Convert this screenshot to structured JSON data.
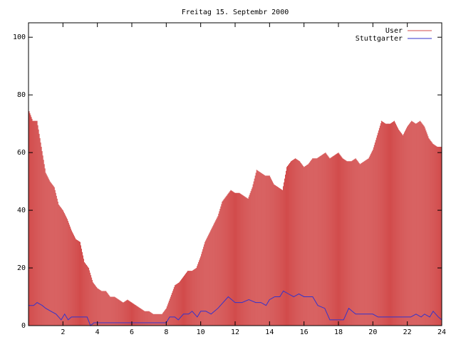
{
  "chart_data": {
    "type": "bar",
    "title": "Freitag 15. Septembr 2000",
    "xlabel": "",
    "ylabel": "",
    "xlim": [
      0,
      24
    ],
    "ylim": [
      0,
      105
    ],
    "x_ticks": [
      2,
      4,
      6,
      8,
      10,
      12,
      14,
      16,
      18,
      20,
      22,
      24
    ],
    "y_ticks": [
      0,
      20,
      40,
      60,
      80,
      100
    ],
    "legend_position": "top-right",
    "grid": false,
    "series": [
      {
        "name": "User",
        "style": "impulses",
        "color": "#d24b4b",
        "points": [
          [
            0,
            75
          ],
          [
            0.25,
            71
          ],
          [
            0.5,
            71
          ],
          [
            0.75,
            62
          ],
          [
            1,
            53
          ],
          [
            1.25,
            50
          ],
          [
            1.5,
            48
          ],
          [
            1.75,
            42
          ],
          [
            2,
            40
          ],
          [
            2.25,
            37
          ],
          [
            2.5,
            33
          ],
          [
            2.75,
            30
          ],
          [
            3,
            29
          ],
          [
            3.25,
            22
          ],
          [
            3.5,
            20
          ],
          [
            3.75,
            15
          ],
          [
            4,
            13
          ],
          [
            4.25,
            12
          ],
          [
            4.5,
            12
          ],
          [
            4.75,
            10
          ],
          [
            5,
            10
          ],
          [
            5.25,
            9
          ],
          [
            5.5,
            8
          ],
          [
            5.75,
            9
          ],
          [
            6,
            8
          ],
          [
            6.25,
            7
          ],
          [
            6.5,
            6
          ],
          [
            6.75,
            5
          ],
          [
            7,
            5
          ],
          [
            7.25,
            4
          ],
          [
            7.5,
            4
          ],
          [
            7.75,
            4
          ],
          [
            8,
            6
          ],
          [
            8.25,
            10
          ],
          [
            8.5,
            14
          ],
          [
            8.75,
            15
          ],
          [
            9,
            17
          ],
          [
            9.25,
            19
          ],
          [
            9.5,
            19
          ],
          [
            9.75,
            20
          ],
          [
            10,
            24
          ],
          [
            10.25,
            29
          ],
          [
            10.5,
            32
          ],
          [
            10.75,
            35
          ],
          [
            11,
            38
          ],
          [
            11.25,
            43
          ],
          [
            11.5,
            45
          ],
          [
            11.75,
            47
          ],
          [
            12,
            46
          ],
          [
            12.25,
            46
          ],
          [
            12.5,
            45
          ],
          [
            12.75,
            44
          ],
          [
            13,
            48
          ],
          [
            13.25,
            54
          ],
          [
            13.5,
            53
          ],
          [
            13.75,
            52
          ],
          [
            14,
            52
          ],
          [
            14.25,
            49
          ],
          [
            14.5,
            48
          ],
          [
            14.75,
            47
          ],
          [
            15,
            55
          ],
          [
            15.25,
            57
          ],
          [
            15.5,
            58
          ],
          [
            15.75,
            57
          ],
          [
            16,
            55
          ],
          [
            16.25,
            56
          ],
          [
            16.5,
            58
          ],
          [
            16.75,
            58
          ],
          [
            17,
            59
          ],
          [
            17.25,
            60
          ],
          [
            17.5,
            58
          ],
          [
            17.75,
            59
          ],
          [
            18,
            60
          ],
          [
            18.25,
            58
          ],
          [
            18.5,
            57
          ],
          [
            18.75,
            57
          ],
          [
            19,
            58
          ],
          [
            19.25,
            56
          ],
          [
            19.5,
            57
          ],
          [
            19.75,
            58
          ],
          [
            20,
            61
          ],
          [
            20.25,
            66
          ],
          [
            20.5,
            71
          ],
          [
            20.75,
            70
          ],
          [
            21,
            70
          ],
          [
            21.25,
            71
          ],
          [
            21.5,
            68
          ],
          [
            21.75,
            66
          ],
          [
            22,
            69
          ],
          [
            22.25,
            71
          ],
          [
            22.5,
            70
          ],
          [
            22.75,
            71
          ],
          [
            23,
            69
          ],
          [
            23.25,
            65
          ],
          [
            23.5,
            63
          ],
          [
            23.75,
            62
          ],
          [
            24,
            62
          ]
        ]
      },
      {
        "name": "Stuttgarter",
        "style": "line",
        "color": "#3333cc",
        "points": [
          [
            0,
            7
          ],
          [
            0.3,
            7
          ],
          [
            0.5,
            8
          ],
          [
            0.8,
            7
          ],
          [
            1,
            6
          ],
          [
            1.3,
            5
          ],
          [
            1.6,
            4
          ],
          [
            1.9,
            2
          ],
          [
            2.1,
            4
          ],
          [
            2.3,
            2
          ],
          [
            2.5,
            3
          ],
          [
            3,
            3
          ],
          [
            3.4,
            3
          ],
          [
            3.6,
            0
          ],
          [
            3.8,
            1
          ],
          [
            4.2,
            1
          ],
          [
            5,
            1
          ],
          [
            5.5,
            1
          ],
          [
            6,
            1
          ],
          [
            7,
            1
          ],
          [
            7.5,
            1
          ],
          [
            8,
            1
          ],
          [
            8.2,
            3
          ],
          [
            8.5,
            3
          ],
          [
            8.7,
            2
          ],
          [
            9,
            4
          ],
          [
            9.3,
            4
          ],
          [
            9.5,
            5
          ],
          [
            9.8,
            3
          ],
          [
            10,
            5
          ],
          [
            10.3,
            5
          ],
          [
            10.6,
            4
          ],
          [
            11,
            6
          ],
          [
            11.3,
            8
          ],
          [
            11.6,
            10
          ],
          [
            11.8,
            9
          ],
          [
            12,
            8
          ],
          [
            12.4,
            8
          ],
          [
            12.8,
            9
          ],
          [
            13.2,
            8
          ],
          [
            13.5,
            8
          ],
          [
            13.8,
            7
          ],
          [
            14,
            9
          ],
          [
            14.3,
            10
          ],
          [
            14.6,
            10
          ],
          [
            14.8,
            12
          ],
          [
            15.1,
            11
          ],
          [
            15.4,
            10
          ],
          [
            15.7,
            11
          ],
          [
            16,
            10
          ],
          [
            16.5,
            10
          ],
          [
            16.8,
            7
          ],
          [
            17.2,
            6
          ],
          [
            17.5,
            2
          ],
          [
            18,
            2
          ],
          [
            18.3,
            2
          ],
          [
            18.6,
            6
          ],
          [
            18.8,
            5
          ],
          [
            19,
            4
          ],
          [
            19.5,
            4
          ],
          [
            20,
            4
          ],
          [
            20.3,
            3
          ],
          [
            20.8,
            3
          ],
          [
            21.5,
            3
          ],
          [
            22.2,
            3
          ],
          [
            22.5,
            4
          ],
          [
            22.8,
            3
          ],
          [
            23,
            4
          ],
          [
            23.3,
            3
          ],
          [
            23.5,
            5
          ],
          [
            23.8,
            3
          ],
          [
            24,
            2
          ]
        ]
      }
    ]
  }
}
